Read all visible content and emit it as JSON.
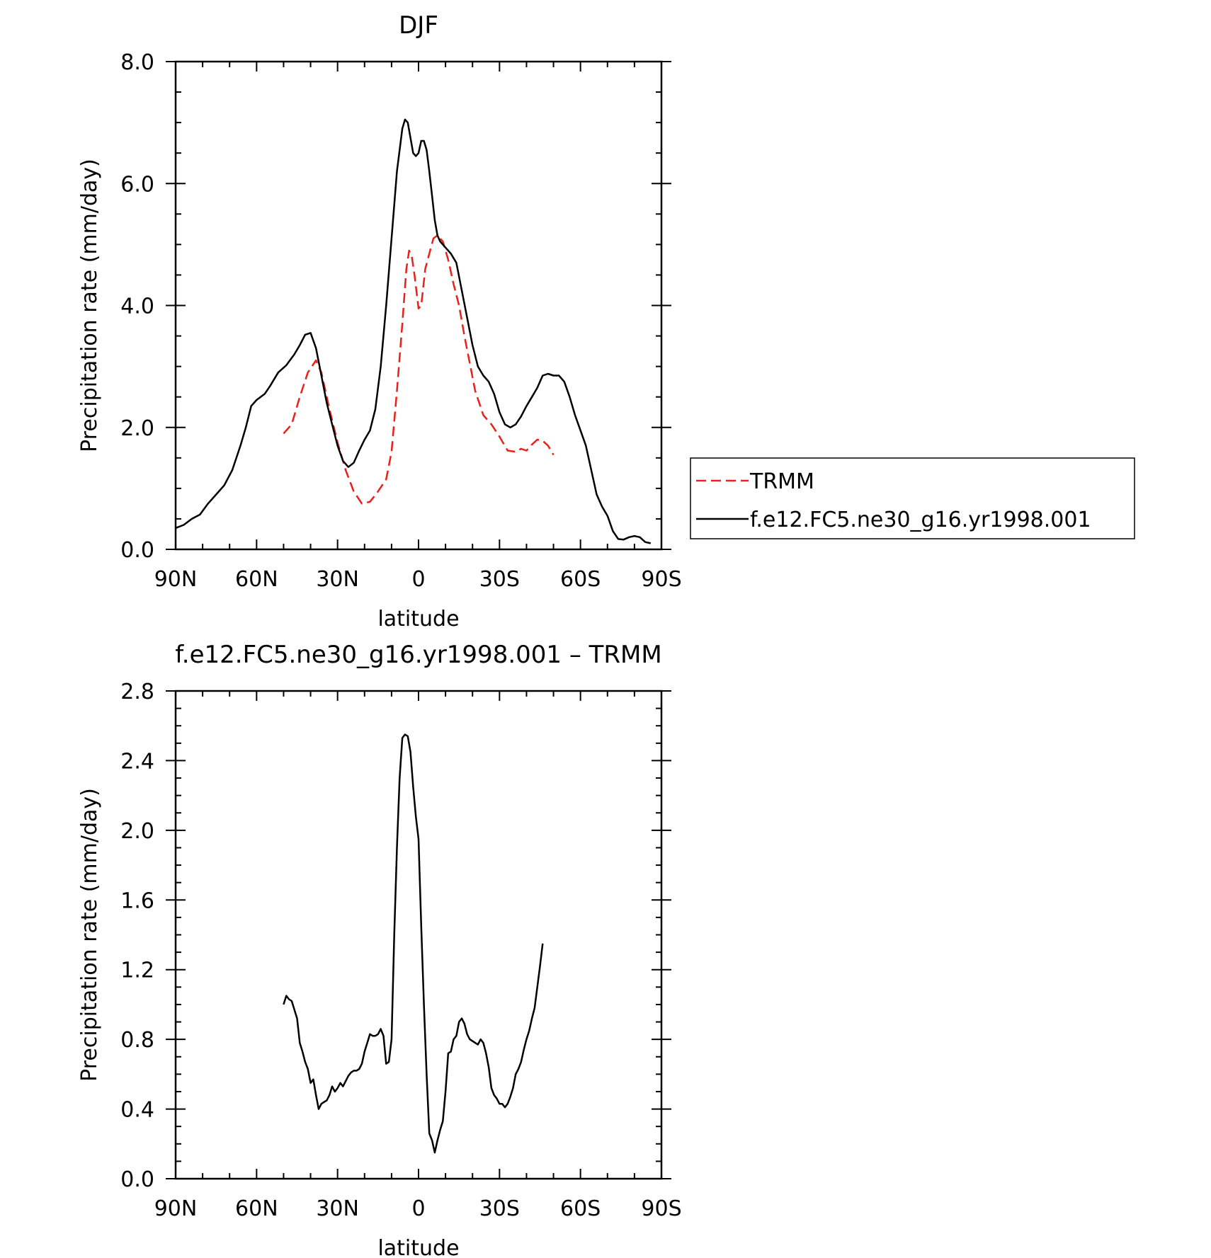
{
  "chart_data": [
    {
      "type": "line",
      "title": "DJF",
      "xlabel": "latitude",
      "ylabel": "Precipitation rate (mm/day)",
      "xlim": [
        90,
        -90
      ],
      "ylim": [
        0,
        8
      ],
      "x_ticks": [
        {
          "value": 90,
          "label": "90N"
        },
        {
          "value": 60,
          "label": "60N"
        },
        {
          "value": 30,
          "label": "30N"
        },
        {
          "value": 0,
          "label": "0"
        },
        {
          "value": -30,
          "label": "30S"
        },
        {
          "value": -60,
          "label": "60S"
        },
        {
          "value": -90,
          "label": "90S"
        }
      ],
      "y_ticks": [
        {
          "value": 0,
          "label": "0.0"
        },
        {
          "value": 2,
          "label": "2.0"
        },
        {
          "value": 4,
          "label": "4.0"
        },
        {
          "value": 6,
          "label": "6.0"
        },
        {
          "value": 8,
          "label": "8.0"
        }
      ],
      "legend": "right",
      "series": [
        {
          "name": "TRMM",
          "color": "#e8211a",
          "dash": true,
          "points": [
            [
              50,
              1.9
            ],
            [
              47,
              2.05
            ],
            [
              44,
              2.5
            ],
            [
              41,
              2.9
            ],
            [
              38,
              3.1
            ],
            [
              36,
              2.9
            ],
            [
              33,
              2.3
            ],
            [
              30,
              1.75
            ],
            [
              27,
              1.3
            ],
            [
              24,
              0.95
            ],
            [
              21,
              0.75
            ],
            [
              18,
              0.78
            ],
            [
              15,
              0.95
            ],
            [
              12,
              1.15
            ],
            [
              10,
              1.6
            ],
            [
              8,
              2.6
            ],
            [
              6,
              3.7
            ],
            [
              4.5,
              4.6
            ],
            [
              3.5,
              4.9
            ],
            [
              2.5,
              4.8
            ],
            [
              1.5,
              4.5
            ],
            [
              0,
              3.95
            ],
            [
              -1,
              4.0
            ],
            [
              -2.5,
              4.6
            ],
            [
              -4,
              4.85
            ],
            [
              -5.5,
              5.1
            ],
            [
              -7,
              5.15
            ],
            [
              -9,
              5.05
            ],
            [
              -11,
              4.75
            ],
            [
              -13,
              4.35
            ],
            [
              -15,
              4.0
            ],
            [
              -17,
              3.5
            ],
            [
              -19,
              3.05
            ],
            [
              -21,
              2.6
            ],
            [
              -24,
              2.2
            ],
            [
              -27,
              2.05
            ],
            [
              -30,
              1.85
            ],
            [
              -33,
              1.62
            ],
            [
              -36,
              1.6
            ],
            [
              -38,
              1.65
            ],
            [
              -40,
              1.62
            ],
            [
              -42,
              1.72
            ],
            [
              -44,
              1.8
            ],
            [
              -46,
              1.78
            ],
            [
              -48,
              1.7
            ],
            [
              -50,
              1.55
            ]
          ]
        },
        {
          "name": "f.e12.FC5.ne30_g16.yr1998.001",
          "color": "#000000",
          "dash": false,
          "points": [
            [
              90,
              0.35
            ],
            [
              87,
              0.4
            ],
            [
              84,
              0.5
            ],
            [
              81,
              0.57
            ],
            [
              78,
              0.75
            ],
            [
              75,
              0.9
            ],
            [
              72,
              1.05
            ],
            [
              69,
              1.3
            ],
            [
              66,
              1.7
            ],
            [
              64,
              2.0
            ],
            [
              62,
              2.35
            ],
            [
              60,
              2.45
            ],
            [
              57,
              2.55
            ],
            [
              55,
              2.68
            ],
            [
              52,
              2.9
            ],
            [
              49,
              3.02
            ],
            [
              46,
              3.2
            ],
            [
              44,
              3.35
            ],
            [
              42,
              3.52
            ],
            [
              40,
              3.55
            ],
            [
              38,
              3.3
            ],
            [
              36,
              2.85
            ],
            [
              34,
              2.4
            ],
            [
              32,
              2.05
            ],
            [
              30,
              1.7
            ],
            [
              28,
              1.45
            ],
            [
              26,
              1.35
            ],
            [
              24,
              1.42
            ],
            [
              22,
              1.62
            ],
            [
              20,
              1.8
            ],
            [
              18,
              1.95
            ],
            [
              16,
              2.3
            ],
            [
              14,
              3.0
            ],
            [
              12,
              4.0
            ],
            [
              10,
              5.1
            ],
            [
              8,
              6.2
            ],
            [
              6,
              6.9
            ],
            [
              5,
              7.05
            ],
            [
              4,
              7.0
            ],
            [
              3,
              6.75
            ],
            [
              2,
              6.5
            ],
            [
              1,
              6.45
            ],
            [
              0,
              6.5
            ],
            [
              -1,
              6.7
            ],
            [
              -2,
              6.7
            ],
            [
              -3,
              6.55
            ],
            [
              -4,
              6.2
            ],
            [
              -5,
              5.8
            ],
            [
              -6,
              5.4
            ],
            [
              -7,
              5.15
            ],
            [
              -8,
              5.05
            ],
            [
              -10,
              4.95
            ],
            [
              -12,
              4.85
            ],
            [
              -14,
              4.7
            ],
            [
              -16,
              4.25
            ],
            [
              -18,
              3.8
            ],
            [
              -20,
              3.35
            ],
            [
              -22,
              3.0
            ],
            [
              -24,
              2.85
            ],
            [
              -26,
              2.75
            ],
            [
              -28,
              2.55
            ],
            [
              -30,
              2.25
            ],
            [
              -32,
              2.05
            ],
            [
              -34,
              2.0
            ],
            [
              -36,
              2.05
            ],
            [
              -38,
              2.18
            ],
            [
              -40,
              2.35
            ],
            [
              -42,
              2.5
            ],
            [
              -44,
              2.65
            ],
            [
              -46,
              2.85
            ],
            [
              -48,
              2.88
            ],
            [
              -50,
              2.85
            ],
            [
              -52,
              2.85
            ],
            [
              -54,
              2.75
            ],
            [
              -56,
              2.5
            ],
            [
              -58,
              2.2
            ],
            [
              -60,
              1.95
            ],
            [
              -62,
              1.7
            ],
            [
              -64,
              1.3
            ],
            [
              -66,
              0.9
            ],
            [
              -68,
              0.7
            ],
            [
              -70,
              0.55
            ],
            [
              -72,
              0.3
            ],
            [
              -74,
              0.17
            ],
            [
              -76,
              0.16
            ],
            [
              -78,
              0.2
            ],
            [
              -80,
              0.22
            ],
            [
              -82,
              0.2
            ],
            [
              -84,
              0.12
            ],
            [
              -86,
              0.1
            ]
          ]
        }
      ]
    },
    {
      "type": "line",
      "title": "f.e12.FC5.ne30_g16.yr1998.001 – TRMM",
      "xlabel": "latitude",
      "ylabel": "Precipitation rate (mm/day)",
      "xlim": [
        90,
        -90
      ],
      "ylim": [
        0,
        2.8
      ],
      "x_ticks": [
        {
          "value": 90,
          "label": "90N"
        },
        {
          "value": 60,
          "label": "60N"
        },
        {
          "value": 30,
          "label": "30N"
        },
        {
          "value": 0,
          "label": "0"
        },
        {
          "value": -30,
          "label": "30S"
        },
        {
          "value": -60,
          "label": "60S"
        },
        {
          "value": -90,
          "label": "90S"
        }
      ],
      "y_ticks": [
        {
          "value": 0,
          "label": "0.0"
        },
        {
          "value": 0.4,
          "label": "0.4"
        },
        {
          "value": 0.8,
          "label": "0.8"
        },
        {
          "value": 1.2,
          "label": "1.2"
        },
        {
          "value": 1.6,
          "label": "1.6"
        },
        {
          "value": 2.0,
          "label": "2.0"
        },
        {
          "value": 2.4,
          "label": "2.4"
        },
        {
          "value": 2.8,
          "label": "2.8"
        }
      ],
      "series": [
        {
          "color": "#000000",
          "dash": false,
          "points": [
            [
              50,
              1.0
            ],
            [
              49,
              1.05
            ],
            [
              48,
              1.03
            ],
            [
              47,
              1.02
            ],
            [
              46,
              0.97
            ],
            [
              45,
              0.92
            ],
            [
              44,
              0.78
            ],
            [
              43,
              0.73
            ],
            [
              42,
              0.67
            ],
            [
              41,
              0.63
            ],
            [
              40,
              0.55
            ],
            [
              39,
              0.57
            ],
            [
              38,
              0.48
            ],
            [
              37,
              0.4
            ],
            [
              36,
              0.43
            ],
            [
              35,
              0.44
            ],
            [
              34,
              0.45
            ],
            [
              33,
              0.48
            ],
            [
              32,
              0.53
            ],
            [
              31,
              0.5
            ],
            [
              30,
              0.52
            ],
            [
              29,
              0.55
            ],
            [
              28,
              0.53
            ],
            [
              27,
              0.56
            ],
            [
              26,
              0.59
            ],
            [
              25,
              0.61
            ],
            [
              24,
              0.62
            ],
            [
              23,
              0.62
            ],
            [
              22,
              0.63
            ],
            [
              21,
              0.66
            ],
            [
              20,
              0.73
            ],
            [
              19,
              0.78
            ],
            [
              18,
              0.83
            ],
            [
              17,
              0.82
            ],
            [
              16,
              0.82
            ],
            [
              15,
              0.83
            ],
            [
              14,
              0.86
            ],
            [
              13,
              0.82
            ],
            [
              12,
              0.66
            ],
            [
              11,
              0.67
            ],
            [
              10,
              0.8
            ],
            [
              9,
              1.4
            ],
            [
              8,
              1.9
            ],
            [
              7,
              2.3
            ],
            [
              6,
              2.53
            ],
            [
              5,
              2.55
            ],
            [
              4,
              2.54
            ],
            [
              3,
              2.45
            ],
            [
              2,
              2.25
            ],
            [
              1,
              2.08
            ],
            [
              0,
              1.95
            ],
            [
              -1,
              1.45
            ],
            [
              -2,
              1.0
            ],
            [
              -3,
              0.6
            ],
            [
              -4,
              0.26
            ],
            [
              -5,
              0.22
            ],
            [
              -6,
              0.15
            ],
            [
              -7,
              0.22
            ],
            [
              -8,
              0.28
            ],
            [
              -9,
              0.33
            ],
            [
              -10,
              0.5
            ],
            [
              -11,
              0.72
            ],
            [
              -12,
              0.73
            ],
            [
              -13,
              0.8
            ],
            [
              -14,
              0.82
            ],
            [
              -15,
              0.9
            ],
            [
              -16,
              0.92
            ],
            [
              -17,
              0.89
            ],
            [
              -18,
              0.83
            ],
            [
              -19,
              0.8
            ],
            [
              -20,
              0.79
            ],
            [
              -21,
              0.78
            ],
            [
              -22,
              0.77
            ],
            [
              -23,
              0.8
            ],
            [
              -24,
              0.78
            ],
            [
              -25,
              0.72
            ],
            [
              -26,
              0.64
            ],
            [
              -27,
              0.52
            ],
            [
              -28,
              0.48
            ],
            [
              -29,
              0.46
            ],
            [
              -30,
              0.43
            ],
            [
              -31,
              0.43
            ],
            [
              -32,
              0.41
            ],
            [
              -33,
              0.43
            ],
            [
              -34,
              0.47
            ],
            [
              -35,
              0.52
            ],
            [
              -36,
              0.6
            ],
            [
              -37,
              0.63
            ],
            [
              -38,
              0.67
            ],
            [
              -39,
              0.74
            ],
            [
              -40,
              0.8
            ],
            [
              -41,
              0.85
            ],
            [
              -42,
              0.92
            ],
            [
              -43,
              0.98
            ],
            [
              -44,
              1.1
            ],
            [
              -45,
              1.22
            ],
            [
              -46,
              1.35
            ]
          ]
        }
      ]
    }
  ]
}
